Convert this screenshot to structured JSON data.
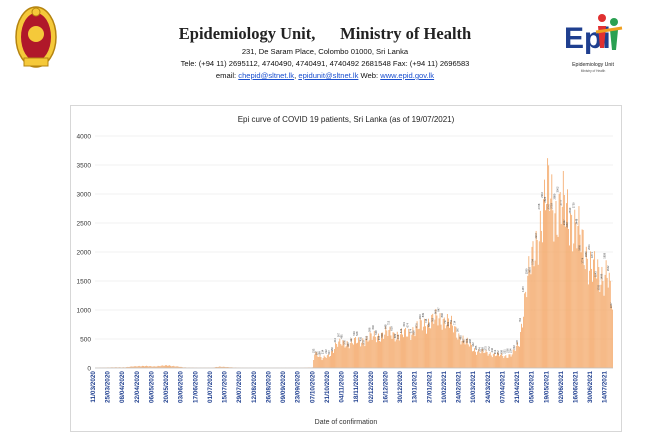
{
  "header": {
    "unit_title": "Epidemiology Unit,",
    "ministry_title": "Ministry of Health",
    "address": "231, De Saram Place, Colombo 01000, Sri Lanka",
    "phones": "Tele: (+94 11) 2695112, 4740490, 4740491, 4740492 2681548  Fax: (+94 11) 2696583",
    "email_label": "email: ",
    "email1": "chepid@sltnet.lk",
    "email_sep": ", ",
    "email2": "epidunit@sltnet.lk",
    "web_label": " Web: ",
    "web": "www.epid.gov.lk",
    "logo_caption": "Epidemiology Unit",
    "logo_subcaption": "Ministry of Health",
    "logo_letters": "Epi"
  },
  "colors": {
    "bar": "#f4a96a",
    "bar_edge": "#e8894a",
    "axis_label": "#1f3f8f",
    "grid": "#e3e3e3",
    "label_text": "#444444"
  },
  "chart_data": {
    "type": "bar",
    "title": "Epi curve of COVID 19 patients, Sri Lanka  (as of 19/07/2021)",
    "xlabel": "Date of confirmation",
    "ylabel": "",
    "ylim": [
      0,
      4000
    ],
    "yticks": [
      0,
      500,
      1000,
      1500,
      2000,
      2500,
      3000,
      3500,
      4000
    ],
    "grid": true,
    "legend": "none",
    "x_start": "2020-03-11",
    "x_end": "2021-07-19",
    "date_ticks": [
      "11/03/2020",
      "25/03/2020",
      "08/04/2020",
      "22/04/2020",
      "06/05/2020",
      "20/05/2020",
      "03/06/2020",
      "17/06/2020",
      "01/07/2020",
      "15/07/2020",
      "29/07/2020",
      "12/08/2020",
      "26/08/2020",
      "09/09/2020",
      "23/09/2020",
      "07/10/2020",
      "21/10/2020",
      "04/11/2020",
      "18/11/2020",
      "02/12/2020",
      "16/12/2020",
      "30/12/2020",
      "13/01/2021",
      "27/01/2021",
      "10/02/2021",
      "24/02/2021",
      "10/03/2021",
      "24/03/2021",
      "07/04/2021",
      "21/04/2021",
      "05/05/2021",
      "19/05/2021",
      "02/06/2021",
      "16/06/2021",
      "30/06/2021",
      "14/07/2021"
    ],
    "profile": [
      [
        "2020-03-11",
        2
      ],
      [
        "2020-03-25",
        10
      ],
      [
        "2020-04-08",
        12
      ],
      [
        "2020-04-22",
        35
      ],
      [
        "2020-05-06",
        28
      ],
      [
        "2020-05-20",
        45
      ],
      [
        "2020-06-03",
        12
      ],
      [
        "2020-06-17",
        4
      ],
      [
        "2020-07-01",
        5
      ],
      [
        "2020-07-08",
        25
      ],
      [
        "2020-07-15",
        15
      ],
      [
        "2020-07-29",
        3
      ],
      [
        "2020-08-26",
        2
      ],
      [
        "2020-09-23",
        3
      ],
      [
        "2020-10-05",
        10
      ],
      [
        "2020-10-07",
        300
      ],
      [
        "2020-10-14",
        150
      ],
      [
        "2020-10-21",
        230
      ],
      [
        "2020-10-28",
        400
      ],
      [
        "2020-11-04",
        430
      ],
      [
        "2020-11-18",
        450
      ],
      [
        "2020-12-02",
        530
      ],
      [
        "2020-12-16",
        600
      ],
      [
        "2020-12-30",
        560
      ],
      [
        "2021-01-13",
        680
      ],
      [
        "2021-01-27",
        820
      ],
      [
        "2021-02-10",
        840
      ],
      [
        "2021-02-24",
        520
      ],
      [
        "2021-03-10",
        300
      ],
      [
        "2021-03-24",
        250
      ],
      [
        "2021-04-07",
        200
      ],
      [
        "2021-04-14",
        240
      ],
      [
        "2021-04-21",
        420
      ],
      [
        "2021-04-28",
        1500
      ],
      [
        "2021-05-05",
        1900
      ],
      [
        "2021-05-12",
        2600
      ],
      [
        "2021-05-19",
        3050
      ],
      [
        "2021-05-26",
        2700
      ],
      [
        "2021-06-02",
        2750
      ],
      [
        "2021-06-09",
        2600
      ],
      [
        "2021-06-16",
        2300
      ],
      [
        "2021-06-23",
        2000
      ],
      [
        "2021-06-30",
        1700
      ],
      [
        "2021-07-07",
        1550
      ],
      [
        "2021-07-14",
        1700
      ],
      [
        "2021-07-19",
        1000
      ]
    ]
  }
}
